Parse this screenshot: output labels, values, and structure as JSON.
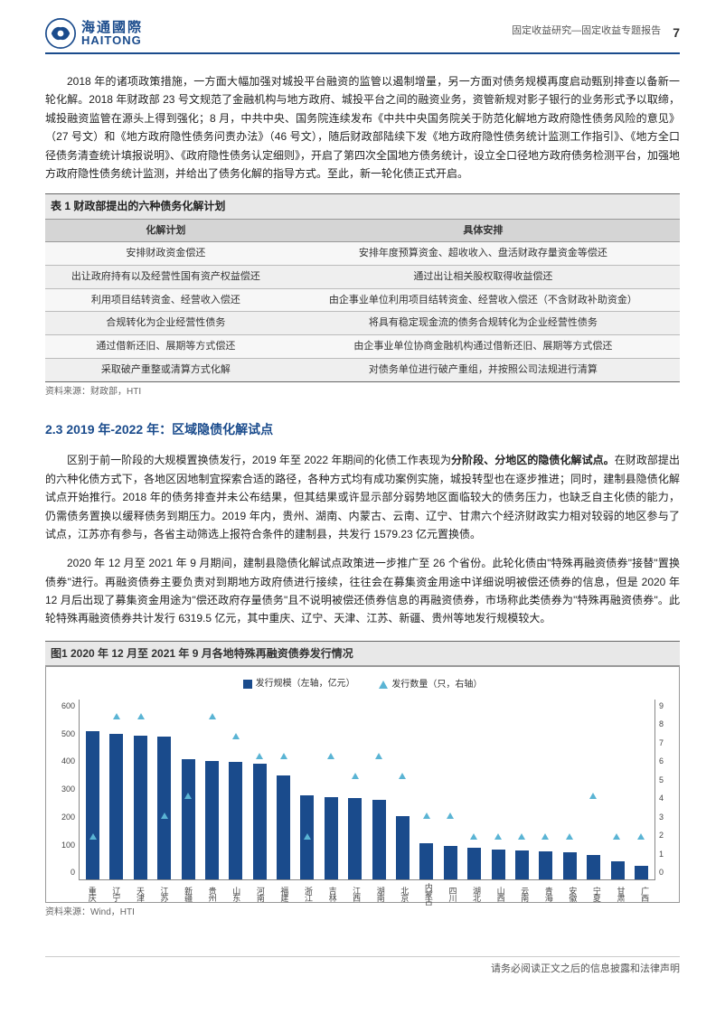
{
  "header": {
    "logo_cn": "海通國際",
    "logo_en": "HAITONG",
    "logo_color": "#1a4b8c",
    "doc_type": "固定收益研究—固定收益专题报告",
    "page_number": "7"
  },
  "paragraphs": {
    "p1": "2018 年的诸项政策措施，一方面大幅加强对城投平台融资的监管以遏制增量，另一方面对债务规模再度启动甄别排查以备新一轮化解。2018 年财政部 23 号文规范了金融机构与地方政府、城投平台之间的融资业务，资管新规对影子银行的业务形式予以取缔，城投融资监管在源头上得到强化；8 月，中共中央、国务院连续发布《中共中央国务院关于防范化解地方政府隐性债务风险的意见》（27 号文）和《地方政府隐性债务问责办法》（46 号文），随后财政部陆续下发《地方政府隐性债务统计监测工作指引》、《地方全口径债务清查统计填报说明》、《政府隐性债务认定细则》，开启了第四次全国地方债务统计，设立全口径地方政府债务检测平台，加强地方政府隐性债务统计监测，并给出了债务化解的指导方式。至此，新一轮化债正式开启。",
    "p2_part1": "区别于前一阶段的大规模置换债发行，2019 年至 2022 年期间的化债工作表现为",
    "p2_bold": "分阶段、分地区的隐债化解试点。",
    "p2_part2": "在财政部提出的六种化债方式下，各地区因地制宜探索合适的路径，各种方式均有成功案例实施，城投转型也在逐步推进；同时，建制县隐债化解试点开始推行。2018 年的债务排查并未公布结果，但其结果或许显示部分弱势地区面临较大的债务压力，也缺乏自主化债的能力，仍需债务置换以缓释债务到期压力。2019 年内，贵州、湖南、内蒙古、云南、辽宁、甘肃六个经济财政实力相对较弱的地区参与了试点，江苏亦有参与，各省主动筛选上报符合条件的建制县，共发行 1579.23 亿元置换债。",
    "p3": "2020 年 12 月至 2021 年 9 月期间，建制县隐债化解试点政策进一步推广至 26 个省份。此轮化债由\"特殊再融资债券\"接替\"置换债券\"进行。再融资债券主要负责对到期地方政府债进行接续，往往会在募集资金用途中详细说明被偿还债券的信息，但是 2020 年 12 月后出现了募集资金用途为\"偿还政府存量债务\"且不说明被偿还债券信息的再融资债券，市场称此类债券为\"特殊再融资债券\"。此轮特殊再融资债券共计发行 6319.5 亿元，其中重庆、辽宁、天津、江苏、新疆、贵州等地发行规模较大。"
  },
  "section_heading": "2.3 2019 年-2022 年：区域隐债化解试点",
  "table1": {
    "title": "表 1 财政部提出的六种债务化解计划",
    "columns": [
      "化解计划",
      "具体安排"
    ],
    "rows": [
      [
        "安排财政资金偿还",
        "安排年度预算资金、超收收入、盘活财政存量资金等偿还"
      ],
      [
        "出让政府持有以及经营性国有资产权益偿还",
        "通过出让相关股权取得收益偿还"
      ],
      [
        "利用项目结转资金、经营收入偿还",
        "由企事业单位利用项目结转资金、经营收入偿还（不含财政补助资金）"
      ],
      [
        "合规转化为企业经营性债务",
        "将具有稳定现金流的债务合规转化为企业经营性债务"
      ],
      [
        "通过借新还旧、展期等方式偿还",
        "由企事业单位协商金融机构通过借新还旧、展期等方式偿还"
      ],
      [
        "采取破产重整或清算方式化解",
        "对债务单位进行破产重组，并按照公司法规进行清算"
      ]
    ],
    "source": "资料来源：财政部，HTI"
  },
  "figure1": {
    "title": "图1 2020 年 12 月至 2021 年 9 月各地特殊再融资债券发行情况",
    "legend_bar": "发行规模（左轴，亿元）",
    "legend_marker": "发行数量（只，右轴）",
    "bar_color": "#1a4b8c",
    "marker_color": "#5ab4d4",
    "background_color": "#ffffff",
    "y_left": {
      "min": 0,
      "max": 600,
      "step": 100,
      "ticks": [
        "600",
        "500",
        "400",
        "300",
        "200",
        "100",
        "0"
      ]
    },
    "y_right": {
      "min": 0,
      "max": 9,
      "step": 1,
      "ticks": [
        "9",
        "8",
        "7",
        "6",
        "5",
        "4",
        "3",
        "2",
        "1",
        "0"
      ]
    },
    "categories": [
      "重庆",
      "辽宁",
      "天津",
      "江苏",
      "新疆",
      "贵州",
      "山东",
      "河南",
      "福建",
      "浙江",
      "吉林",
      "江西",
      "湖南",
      "北京",
      "内蒙古",
      "四川",
      "湖北",
      "山西",
      "云南",
      "青海",
      "安徽",
      "宁夏",
      "甘肃",
      "广西"
    ],
    "bar_values": [
      495,
      485,
      478,
      475,
      400,
      395,
      390,
      385,
      345,
      280,
      275,
      270,
      265,
      210,
      120,
      110,
      105,
      100,
      96,
      93,
      90,
      80,
      60,
      45
    ],
    "marker_values": [
      2,
      8,
      8,
      3,
      4,
      8,
      7,
      6,
      6,
      2,
      6,
      5,
      6,
      5,
      3,
      3,
      2,
      2,
      2,
      2,
      2,
      4,
      2,
      2
    ],
    "source": "资料来源：Wind，HTI"
  },
  "footer": "请务必阅读正文之后的信息披露和法律声明"
}
